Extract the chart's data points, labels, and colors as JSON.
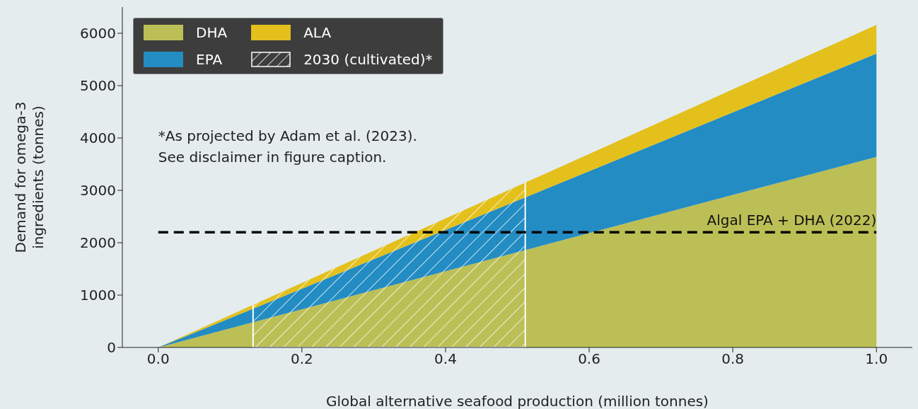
{
  "chart_data": {
    "type": "area",
    "stacked": true,
    "xlabel": "Global alternative seafood production (million tonnes)",
    "ylabel": "Demand for omega-3 ingredients (tonnes)",
    "x": [
      0,
      1
    ],
    "series": [
      {
        "name": "DHA",
        "color": "#bcbf56",
        "values": [
          0,
          3640
        ]
      },
      {
        "name": "EPA",
        "color": "#238cc3",
        "values": [
          0,
          1970
        ]
      },
      {
        "name": "ALA",
        "color": "#e3c01c",
        "values": [
          0,
          550
        ]
      }
    ],
    "xlim": [
      -0.05,
      1.05
    ],
    "xticks": [
      {
        "value": 0,
        "label": "0.0"
      },
      0.2,
      0.4,
      0.6,
      0.8,
      {
        "value": 1,
        "label": "1.0"
      }
    ],
    "ylim": [
      0,
      6500
    ],
    "yticks": [
      0,
      1000,
      2000,
      3000,
      4000,
      5000,
      6000
    ],
    "ref_lines": [
      {
        "axis": "y",
        "value": 2200,
        "label": "Algal EPA + DHA (2022)",
        "color": "#000000",
        "line_style": "dashed"
      }
    ],
    "bands": [
      {
        "axis": "x",
        "from": 0.132,
        "to": 0.511,
        "label": "2030 (cultivated)*",
        "color": "#ffffff"
      }
    ],
    "annotations": [
      "*As projected by Adam et al. (2023). See disclaimer in figure caption."
    ],
    "legend": "top left",
    "grid": false,
    "marker": "none"
  }
}
